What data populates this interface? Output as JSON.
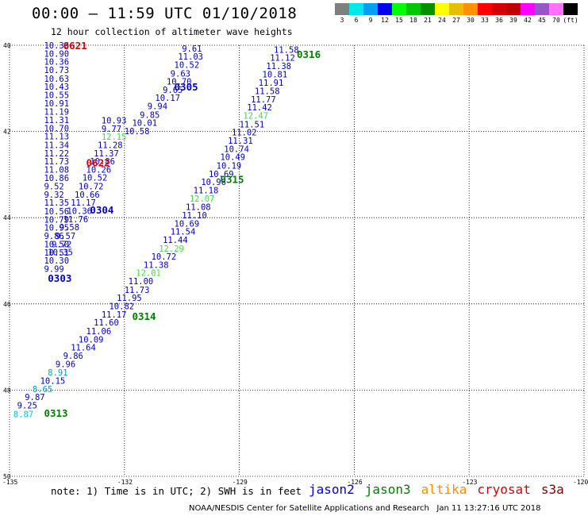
{
  "title": "00:00 – 11:59 UTC 01/10/2018",
  "subtitle": "12 hour collection of altimeter wave heights",
  "scale": {
    "colors": [
      "#7f7f7f",
      "#00e8e8",
      "#00a0f0",
      "#0000f0",
      "#00ff00",
      "#00c800",
      "#009000",
      "#ffff00",
      "#e6c000",
      "#ff9000",
      "#ff0000",
      "#d60000",
      "#c00000",
      "#ff00ff",
      "#9955c8",
      "#ff70ff",
      "#000000"
    ],
    "labels": [
      "3",
      "6",
      "9",
      "12",
      "15",
      "18",
      "21",
      "24",
      "27",
      "30",
      "33",
      "36",
      "39",
      "42",
      "45",
      "70",
      "(ft)"
    ]
  },
  "note": "note: 1) Time is in UTC; 2) SWH is in feet",
  "legend": [
    {
      "name": "jason2",
      "color": "#0000e0"
    },
    {
      "name": "jason3",
      "color": "#008000"
    },
    {
      "name": "altika",
      "color": "#ff8c00"
    },
    {
      "name": "cryosat",
      "color": "#e00000"
    },
    {
      "name": "s3a",
      "color": "#800000"
    }
  ],
  "credit": "NOAA/NESDIS Center for Satellite Applications and Research   Jan 11 13:27:16 UTC 2018",
  "chart_data": {
    "type": "scatter",
    "x_ticks": [
      "-135",
      "-132",
      "-129",
      "-126",
      "-123",
      "-120"
    ],
    "y_ticks": [
      "40",
      "42",
      "44",
      "46",
      "48",
      "50"
    ],
    "xlim": [
      -135,
      -120
    ],
    "ylim": [
      50,
      40
    ],
    "grid": true,
    "colors": {
      "blue": "#0000d0",
      "cyan": "#00a0d0",
      "lightgreen": "#40e040",
      "green": "#008000",
      "red": "#e00000",
      "cyanlight": "#00c8c8"
    },
    "tracks": [
      {
        "pass": "0621",
        "pass_color": "red",
        "pass_pos": [
          -133.6,
          40.0
        ],
        "points": [
          [
            -134.1,
            40.0,
            "10.36",
            "blue"
          ],
          [
            -134.1,
            40.19,
            "10.90",
            "blue"
          ],
          [
            -134.1,
            40.38,
            "10.36",
            "blue"
          ],
          [
            -134.1,
            40.57,
            "10.73",
            "blue"
          ],
          [
            -134.1,
            40.77,
            "10.63",
            "blue"
          ],
          [
            -134.1,
            40.96,
            "10.43",
            "blue"
          ],
          [
            -134.1,
            41.15,
            "10.55",
            "blue"
          ],
          [
            -134.1,
            41.34,
            "10.91",
            "blue"
          ],
          [
            -134.1,
            41.54,
            "11.19",
            "blue"
          ],
          [
            -134.1,
            41.73,
            "11.31",
            "blue"
          ],
          [
            -134.1,
            41.92,
            "10.70",
            "blue"
          ],
          [
            -134.1,
            42.11,
            "11.13",
            "blue"
          ],
          [
            -134.1,
            42.31,
            "11.34",
            "blue"
          ],
          [
            -134.1,
            42.5,
            "11.22",
            "blue"
          ],
          [
            -134.1,
            42.69,
            "11.73",
            "blue"
          ],
          [
            -134.1,
            42.88,
            "11.08",
            "blue"
          ],
          [
            -134.1,
            43.08,
            "10.86",
            "blue"
          ],
          [
            -134.1,
            43.27,
            "9.52",
            "blue"
          ],
          [
            -134.1,
            43.46,
            "9.32",
            "blue"
          ],
          [
            -134.1,
            43.65,
            "11.35",
            "blue"
          ],
          [
            -134.1,
            43.85,
            "10.56",
            "blue"
          ],
          [
            -134.1,
            44.04,
            "10.79",
            "blue"
          ],
          [
            -134.1,
            44.23,
            "10.95",
            "blue"
          ],
          [
            -134.1,
            44.42,
            "9.86",
            "blue"
          ],
          [
            -134.1,
            44.61,
            "10.50",
            "blue"
          ],
          [
            -134.1,
            44.81,
            "10.51",
            "blue"
          ]
        ]
      },
      {
        "pass": "0622",
        "pass_color": "red",
        "pass_pos": [
          -133.0,
          42.72
        ],
        "points": [
          [
            -132.6,
            41.74,
            "10.93",
            "blue"
          ],
          [
            -132.6,
            41.93,
            "9.77",
            "blue"
          ],
          [
            -132.6,
            42.12,
            "12.15",
            "lightgreen"
          ],
          [
            -132.7,
            42.31,
            "11.28",
            "blue"
          ],
          [
            -132.8,
            42.5,
            "11.37",
            "blue"
          ],
          [
            -132.9,
            42.69,
            "10.86",
            "blue"
          ],
          [
            -133.0,
            42.88,
            "10.26",
            "blue"
          ],
          [
            -133.1,
            43.07,
            "10.52",
            "blue"
          ],
          [
            -133.2,
            43.27,
            "10.72",
            "blue"
          ],
          [
            -133.3,
            43.46,
            "10.66",
            "blue"
          ],
          [
            -133.4,
            43.65,
            "11.17",
            "blue"
          ],
          [
            -133.5,
            43.84,
            "10.36",
            "blue"
          ],
          [
            -133.6,
            44.03,
            "11.76",
            "blue"
          ],
          [
            -133.7,
            44.22,
            "9.58",
            "blue"
          ],
          [
            -133.8,
            44.42,
            "9.57",
            "blue"
          ],
          [
            -133.9,
            44.61,
            "9.72",
            "blue"
          ],
          [
            -134.0,
            44.8,
            "10.35",
            "blue"
          ],
          [
            -134.1,
            44.99,
            "10.30",
            "blue"
          ],
          [
            -134.1,
            45.18,
            "9.99",
            "blue"
          ]
        ]
      },
      {
        "pass": "0305",
        "pass_color": "blue",
        "pass_pos": [
          -130.7,
          40.96
        ],
        "points": [
          [
            -130.5,
            40.07,
            "9.61",
            "blue"
          ],
          [
            -130.6,
            40.26,
            "11.03",
            "blue"
          ],
          [
            -130.7,
            40.45,
            "10.52",
            "blue"
          ],
          [
            -130.8,
            40.65,
            "9.63",
            "blue"
          ],
          [
            -130.9,
            40.84,
            "10.70",
            "blue"
          ],
          [
            -131.0,
            41.03,
            "9.65",
            "blue"
          ],
          [
            -131.2,
            41.22,
            "10.17",
            "blue"
          ],
          [
            -131.4,
            41.41,
            "9.94",
            "blue"
          ],
          [
            -131.6,
            41.61,
            "9.85",
            "blue"
          ],
          [
            -131.8,
            41.8,
            "10.01",
            "blue"
          ],
          [
            -132.0,
            41.99,
            "10.58",
            "blue"
          ]
        ]
      },
      {
        "pass": "0304",
        "pass_color": "blue",
        "pass_pos": [
          -132.9,
          43.81
        ],
        "points": []
      },
      {
        "pass": "0303",
        "pass_color": "blue",
        "pass_pos": [
          -134.0,
          45.4
        ],
        "points": []
      },
      {
        "pass": "0316",
        "pass_color": "green",
        "pass_pos": [
          -127.5,
          40.2
        ],
        "points": [
          [
            -128.1,
            40.1,
            "11.58",
            "blue"
          ],
          [
            -128.2,
            40.29,
            "11.12",
            "blue"
          ],
          [
            -128.3,
            40.48,
            "11.38",
            "blue"
          ],
          [
            -128.4,
            40.67,
            "10.81",
            "blue"
          ],
          [
            -128.5,
            40.87,
            "11.91",
            "blue"
          ],
          [
            -128.6,
            41.06,
            "11.58",
            "blue"
          ],
          [
            -128.7,
            41.25,
            "11.77",
            "blue"
          ],
          [
            -128.8,
            41.44,
            "11.42",
            "blue"
          ],
          [
            -128.9,
            41.63,
            "12.47",
            "lightgreen"
          ],
          [
            -129.0,
            41.83,
            "11.51",
            "blue"
          ],
          [
            -129.2,
            42.02,
            "11.02",
            "blue"
          ],
          [
            -129.3,
            42.21,
            "11.31",
            "blue"
          ],
          [
            -129.4,
            42.4,
            "10.74",
            "blue"
          ],
          [
            -129.5,
            42.59,
            "10.49",
            "blue"
          ],
          [
            -129.6,
            42.79,
            "10.19",
            "blue"
          ]
        ]
      },
      {
        "pass": "0315",
        "pass_color": "green",
        "pass_pos": [
          -129.5,
          43.1
        ],
        "points": [
          [
            -129.8,
            42.98,
            "10.69",
            "blue"
          ],
          [
            -130.0,
            43.17,
            "10.96",
            "blue"
          ],
          [
            -130.2,
            43.36,
            "11.18",
            "blue"
          ],
          [
            -130.3,
            43.55,
            "12.07",
            "lightgreen"
          ],
          [
            -130.4,
            43.75,
            "11.08",
            "blue"
          ],
          [
            -130.5,
            43.94,
            "11.10",
            "blue"
          ],
          [
            -130.7,
            44.13,
            "10.69",
            "blue"
          ],
          [
            -130.8,
            44.32,
            "11.54",
            "blue"
          ],
          [
            -131.0,
            44.51,
            "11.44",
            "blue"
          ],
          [
            -131.1,
            44.71,
            "12.29",
            "lightgreen"
          ],
          [
            -131.3,
            44.9,
            "10.72",
            "blue"
          ],
          [
            -131.5,
            45.09,
            "11.38",
            "blue"
          ]
        ]
      },
      {
        "pass": "0314",
        "pass_color": "green",
        "pass_pos": [
          -131.8,
          46.28
        ],
        "points": [
          [
            -131.7,
            45.28,
            "12.01",
            "lightgreen"
          ],
          [
            -131.9,
            45.47,
            "11.00",
            "blue"
          ],
          [
            -132.0,
            45.67,
            "11.73",
            "blue"
          ],
          [
            -132.2,
            45.86,
            "11.95",
            "blue"
          ],
          [
            -132.4,
            46.05,
            "10.82",
            "blue"
          ],
          [
            -132.6,
            46.24,
            "11.17",
            "blue"
          ],
          [
            -132.8,
            46.43,
            "11.60",
            "blue"
          ],
          [
            -133.0,
            46.63,
            "11.06",
            "blue"
          ],
          [
            -133.2,
            46.82,
            "10.09",
            "blue"
          ],
          [
            -133.4,
            47.01,
            "11.64",
            "blue"
          ],
          [
            -133.6,
            47.2,
            "9.86",
            "blue"
          ],
          [
            -133.8,
            47.39,
            "9.96",
            "blue"
          ],
          [
            -134.0,
            47.59,
            "8.91",
            "cyan"
          ],
          [
            -134.2,
            47.78,
            "10.15",
            "blue"
          ],
          [
            -134.4,
            47.97,
            "8.65",
            "cyan"
          ],
          [
            -134.6,
            48.16,
            "9.87",
            "blue"
          ],
          [
            -134.8,
            48.35,
            "9.25",
            "blue"
          ],
          [
            -134.9,
            48.55,
            "8.87",
            "cyanlight"
          ]
        ]
      },
      {
        "pass": "0313",
        "pass_color": "green",
        "pass_pos": [
          -134.1,
          48.53
        ],
        "points": []
      }
    ]
  }
}
